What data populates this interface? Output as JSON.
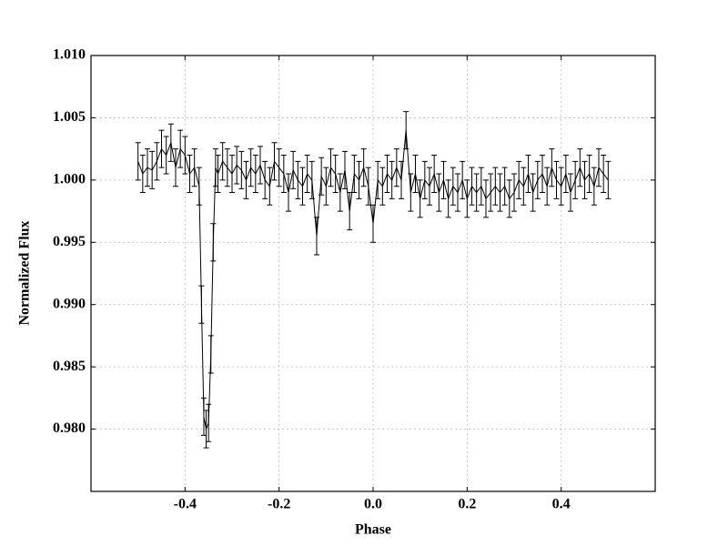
{
  "chart_data": {
    "type": "errorbar",
    "xlabel": "Phase",
    "ylabel": "Normalized Flux",
    "color": "#000000",
    "grid": true,
    "xlim": [
      -0.6,
      0.6
    ],
    "xticks": [
      -0.4,
      -0.2,
      {
        "value": 0,
        "label": "0.0"
      },
      0.2,
      0.4
    ],
    "ylim": [
      0.975,
      1.01
    ],
    "yticks": [
      {
        "value": 0.98,
        "label": "0.980"
      },
      {
        "value": 0.985,
        "label": "0.985"
      },
      {
        "value": 0.99,
        "label": "0.990"
      },
      {
        "value": 0.995,
        "label": "0.995"
      },
      {
        "value": 1,
        "label": "1.000"
      },
      {
        "value": 1.005,
        "label": "1.005"
      },
      {
        "value": 1.01,
        "label": "1.010"
      }
    ],
    "error": 0.0015,
    "x": [
      -0.5,
      -0.49,
      -0.48,
      -0.47,
      -0.46,
      -0.45,
      -0.44,
      -0.43,
      -0.42,
      -0.41,
      -0.4,
      -0.39,
      -0.38,
      -0.37,
      -0.365,
      -0.36,
      -0.355,
      -0.35,
      -0.345,
      -0.34,
      -0.335,
      -0.33,
      -0.32,
      -0.31,
      -0.3,
      -0.29,
      -0.28,
      -0.27,
      -0.26,
      -0.25,
      -0.24,
      -0.23,
      -0.22,
      -0.21,
      -0.2,
      -0.19,
      -0.18,
      -0.17,
      -0.16,
      -0.15,
      -0.14,
      -0.13,
      -0.12,
      -0.11,
      -0.1,
      -0.09,
      -0.08,
      -0.07,
      -0.06,
      -0.05,
      -0.04,
      -0.03,
      -0.02,
      -0.01,
      0,
      0.01,
      0.02,
      0.03,
      0.04,
      0.05,
      0.06,
      0.07,
      0.08,
      0.09,
      0.1,
      0.11,
      0.12,
      0.13,
      0.14,
      0.15,
      0.16,
      0.17,
      0.18,
      0.19,
      0.2,
      0.21,
      0.22,
      0.23,
      0.24,
      0.25,
      0.26,
      0.27,
      0.28,
      0.29,
      0.3,
      0.31,
      0.32,
      0.33,
      0.34,
      0.35,
      0.36,
      0.37,
      0.38,
      0.39,
      0.4,
      0.41,
      0.42,
      0.43,
      0.44,
      0.45,
      0.46,
      0.47,
      0.48,
      0.49,
      0.5
    ],
    "values": [
      1.0015,
      1.0005,
      1.001,
      1.0008,
      1.0015,
      1.0025,
      1.002,
      1.003,
      1.001,
      1.0025,
      1.002,
      1.0005,
      1.001,
      0.9995,
      0.99,
      0.981,
      0.98,
      0.9805,
      0.986,
      0.995,
      1.001,
      1.0005,
      1.0015,
      1.001,
      1.0005,
      1.0012,
      1.0008,
      1.0,
      1.001,
      1.0005,
      1.0012,
      1.0,
      0.9995,
      1.0015,
      1.001,
      1.0005,
      0.999,
      1.0008,
      1.0,
      0.9995,
      1.0005,
      1.0,
      0.9955,
      1.0003,
      0.9995,
      1.001,
      1.0005,
      0.999,
      1.0008,
      0.9975,
      1.0005,
      1.0,
      1.001,
      0.9995,
      0.9965,
      1.0,
      0.9995,
      1.0005,
      1.0,
      1.001,
      1.0,
      1.004,
      0.999,
      1.0005,
      0.9985,
      1.0,
      0.9995,
      1.0005,
      0.999,
      1.0,
      0.9985,
      0.9995,
      0.999,
      1.0,
      0.9985,
      0.9995,
      0.999,
      0.9995,
      0.9985,
      0.999,
      0.9995,
      0.999,
      0.9995,
      0.9985,
      0.999,
      1.0,
      0.9995,
      1.0005,
      0.999,
      1.0,
      1.0005,
      0.9995,
      1.001,
      1.0,
      0.9995,
      1.0005,
      0.999,
      1.0,
      1.001,
      1.0,
      1.0005,
      0.9995,
      1.001,
      1.0005,
      1.0
    ]
  }
}
